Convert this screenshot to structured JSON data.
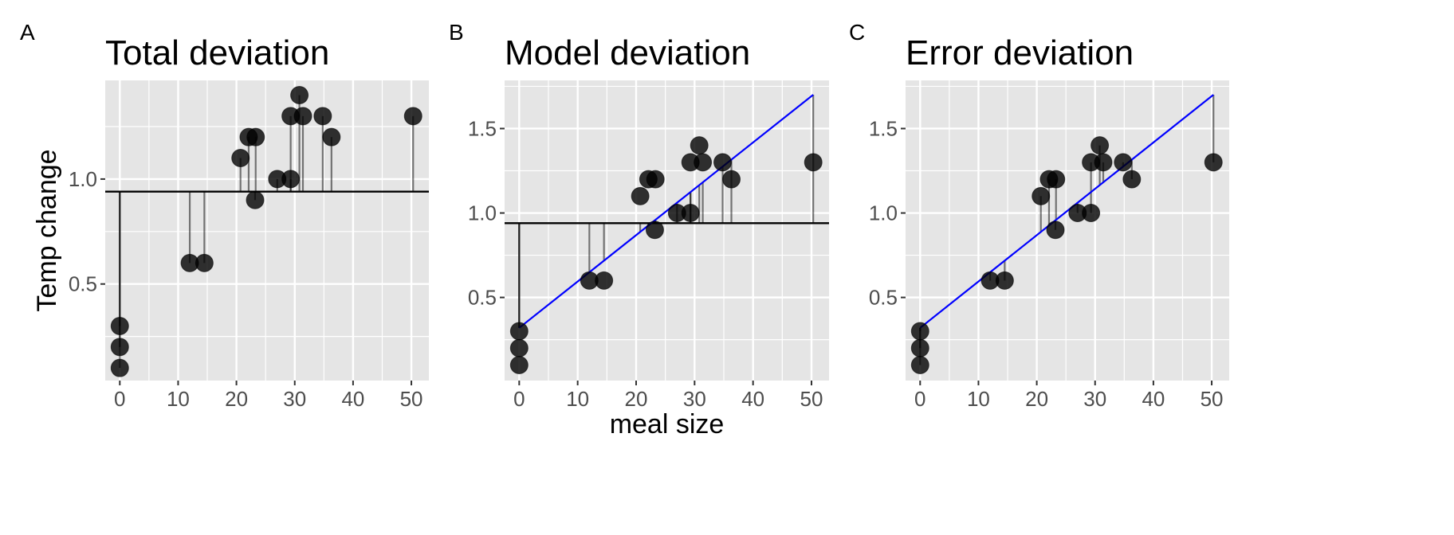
{
  "chart_data": [
    {
      "type": "scatter",
      "tag": "A",
      "title": "Total deviation",
      "xlabel": "",
      "ylabel": "Temp change",
      "xlim": [
        -2.5,
        53
      ],
      "ylim": [
        0.04,
        1.47
      ],
      "xticks": [
        0,
        10,
        20,
        30,
        40,
        50
      ],
      "yticks": [
        0.5,
        1.0
      ],
      "ytick_labels": [
        "0.5",
        "1.0"
      ],
      "segments": "mean-to-point",
      "show_mean_line": true,
      "show_fit_line": false,
      "grid": true
    },
    {
      "type": "scatter",
      "tag": "B",
      "title": "Model deviation",
      "xlabel": "meal size",
      "ylabel": "",
      "xlim": [
        -2.5,
        53
      ],
      "ylim": [
        0.008,
        1.785
      ],
      "xticks": [
        0,
        10,
        20,
        30,
        40,
        50
      ],
      "yticks": [
        0.5,
        1.0,
        1.5
      ],
      "ytick_labels": [
        "0.5",
        "1.0",
        "1.5"
      ],
      "segments": "mean-to-fit",
      "show_mean_line": true,
      "show_fit_line": true,
      "grid": true
    },
    {
      "type": "scatter",
      "tag": "C",
      "title": "Error deviation",
      "xlabel": "",
      "ylabel": "",
      "xlim": [
        -2.5,
        53
      ],
      "ylim": [
        0.008,
        1.785
      ],
      "xticks": [
        0,
        10,
        20,
        30,
        40,
        50
      ],
      "yticks": [
        0.5,
        1.0,
        1.5
      ],
      "ytick_labels": [
        "0.5",
        "1.0",
        "1.5"
      ],
      "segments": "fit-to-point",
      "show_mean_line": false,
      "show_fit_line": true,
      "grid": true
    }
  ],
  "points": {
    "x": [
      0,
      0,
      0,
      12,
      14.5,
      20.7,
      22.1,
      23.3,
      23.2,
      27,
      29.3,
      29.3,
      30.8,
      31.4,
      34.8,
      36.3,
      50.3
    ],
    "y": [
      0.1,
      0.2,
      0.3,
      0.6,
      0.6,
      1.1,
      1.2,
      1.2,
      0.9,
      1.0,
      1.3,
      1.0,
      1.4,
      1.3,
      1.3,
      1.2,
      1.3
    ]
  },
  "mean": 0.94,
  "fit": {
    "intercept": 0.32,
    "slope": 0.02744
  },
  "colors": {
    "panel": "#e5e5e5",
    "grid": "#ffffff",
    "point": "#000000",
    "fit_line": "#0000ff",
    "mean_line": "#000000"
  }
}
